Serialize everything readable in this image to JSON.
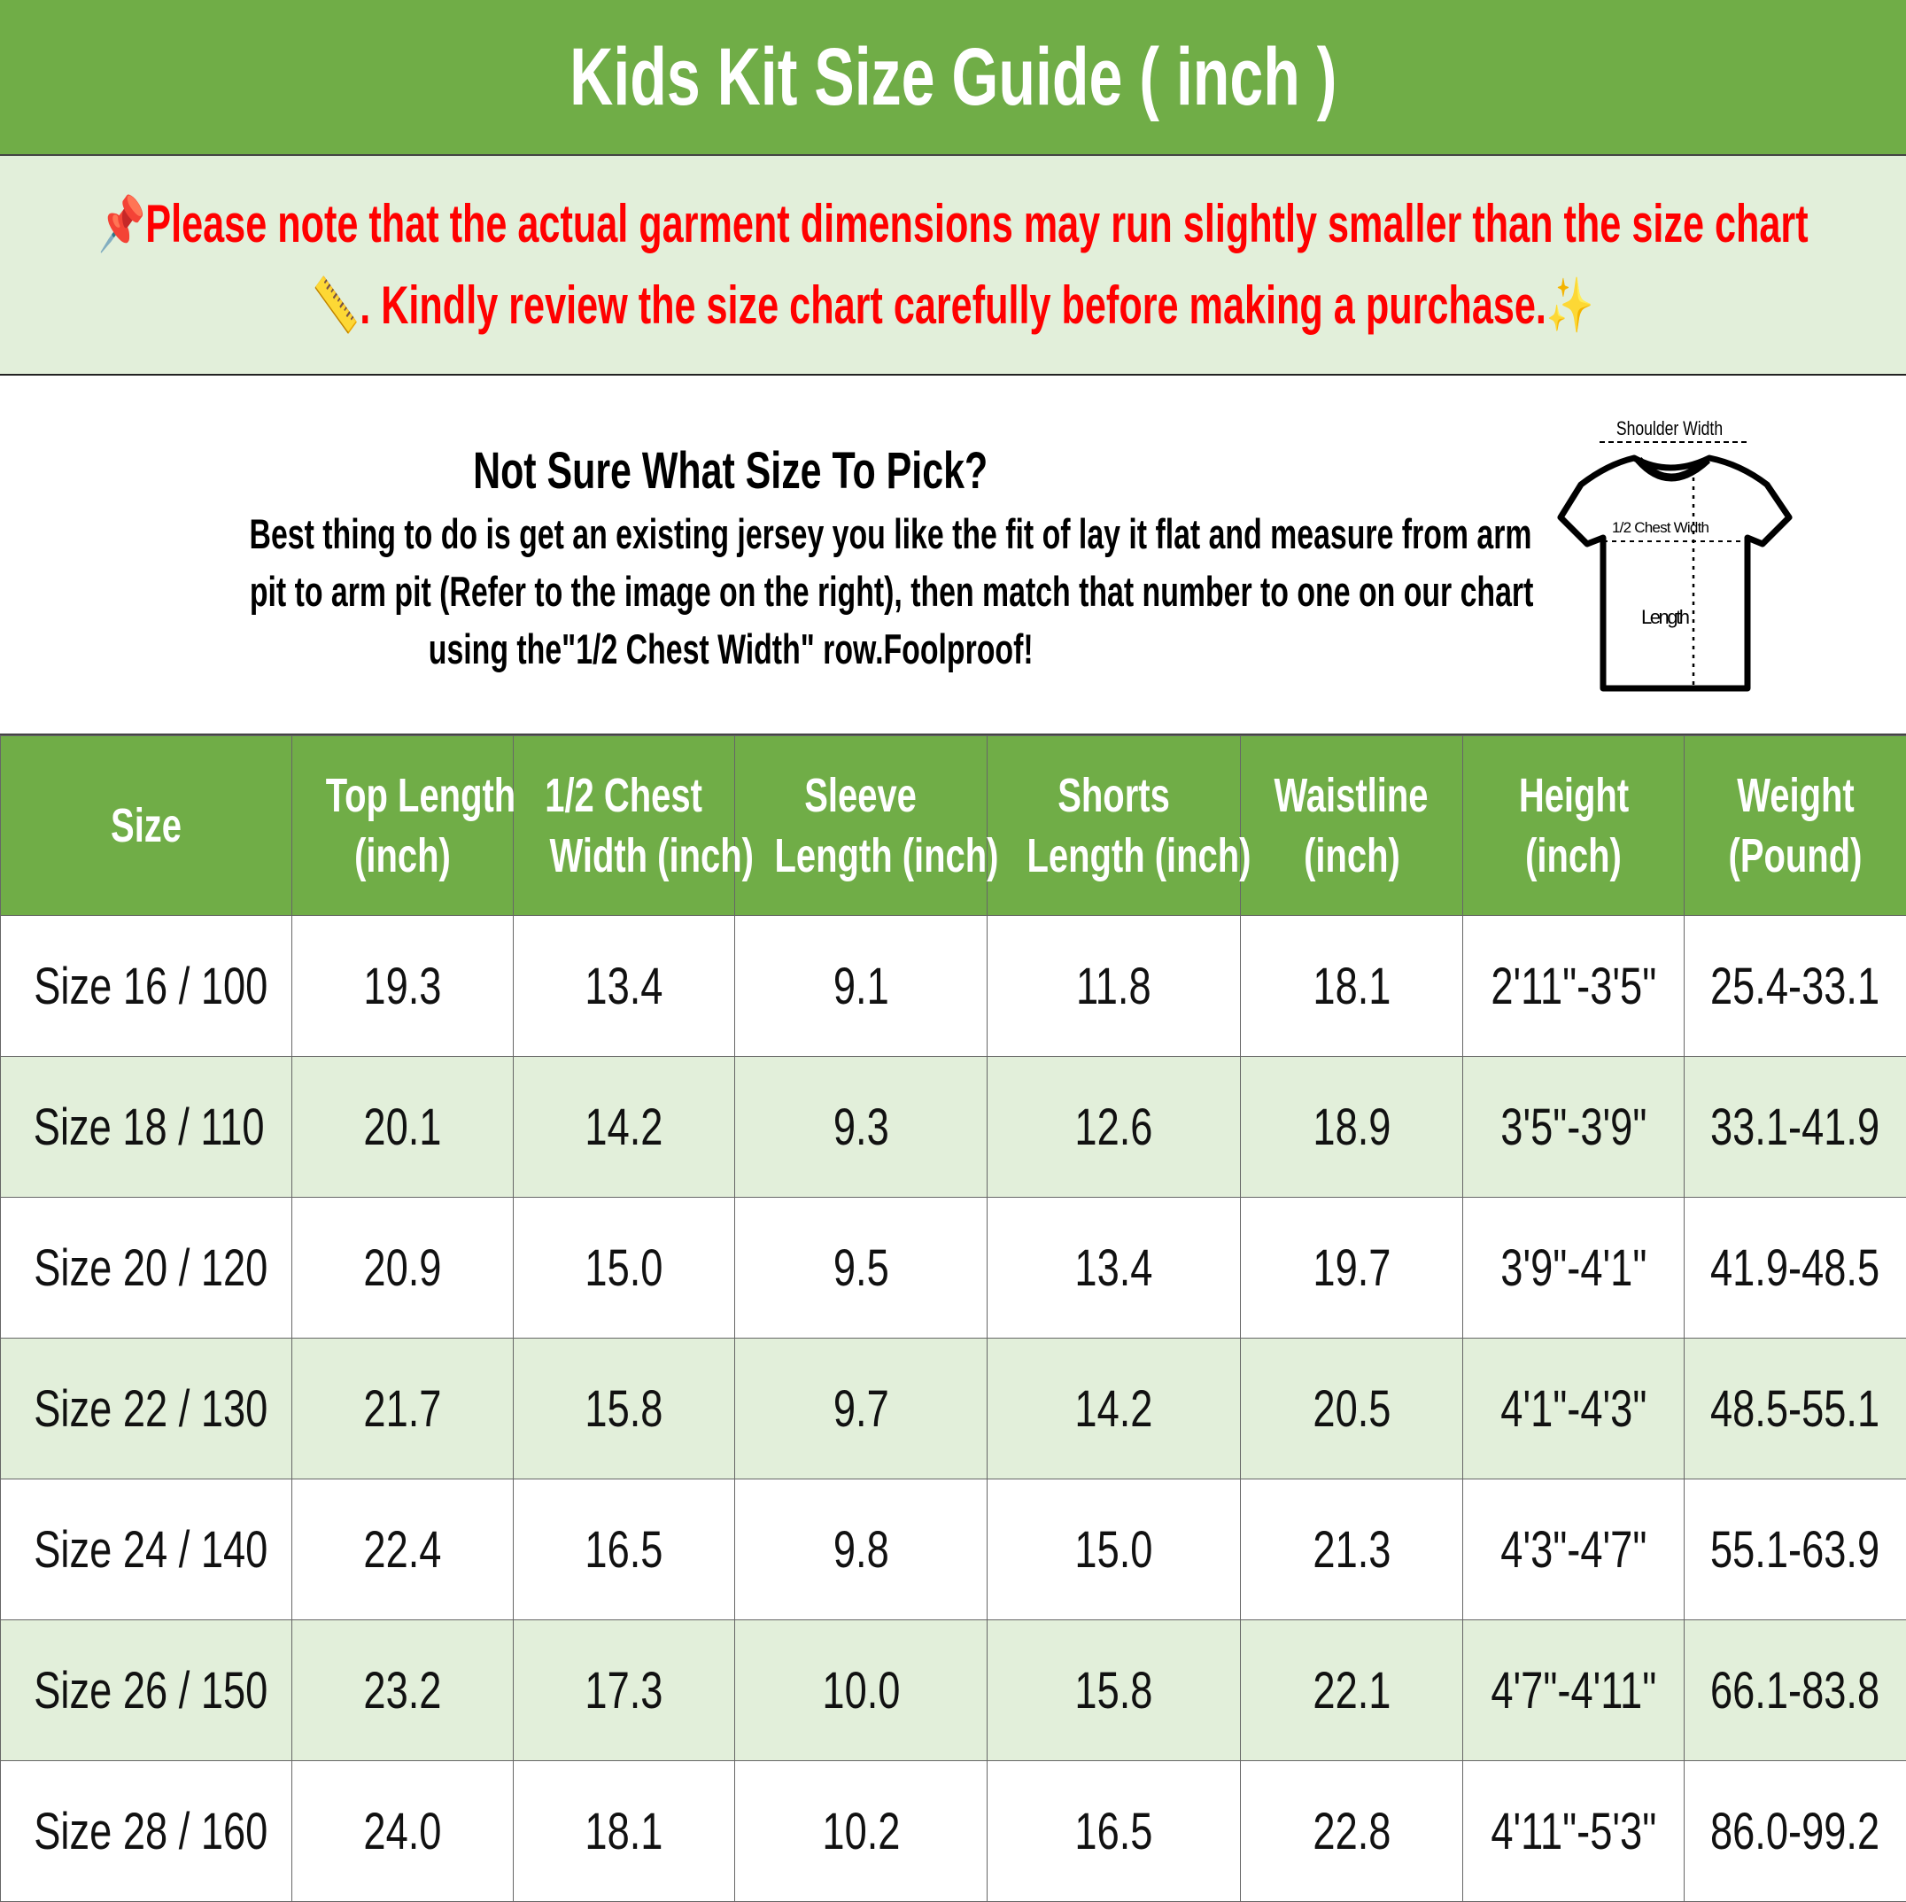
{
  "title": "Kids Kit Size Guide ( inch )",
  "notice": {
    "line1": "Please note that the actual garment dimensions may run slightly smaller than the size chart",
    "line2": ". Kindly review the size chart carefully before making a purchase.",
    "icons": [
      "pushpin-icon",
      "ruler-icon",
      "sparkles-icon"
    ],
    "color": "#ff0000"
  },
  "info": {
    "heading": "Not Sure What Size To Pick?",
    "body_lines": [
      "Best thing to do is get an existing jersey you like the fit of lay it flat and measure from arm",
      "pit to arm pit (Refer to the image on the right), then match that number to one on our chart",
      "using the\"1/2 Chest Width\" row.Foolproof!"
    ],
    "diagram": {
      "shoulder": "Shoulder Width",
      "chest": "1/2 Chest Width",
      "length": "Length"
    }
  },
  "colors": {
    "header": "#70ad47",
    "alt_row": "#e2efda"
  },
  "table": {
    "headers": [
      [
        "Size"
      ],
      [
        "Top Length",
        "(inch)"
      ],
      [
        "1/2 Chest",
        "Width (inch)"
      ],
      [
        "Sleeve",
        "Length (inch)"
      ],
      [
        "Shorts",
        "Length (inch)"
      ],
      [
        "Waistline",
        "(inch)"
      ],
      [
        "Height",
        "(inch)"
      ],
      [
        "Weight",
        "(Pound)"
      ]
    ],
    "rows": [
      [
        "Size 16 / 100",
        "19.3",
        "13.4",
        "9.1",
        "11.8",
        "18.1",
        "2'11\"-3'5\"",
        "25.4-33.1"
      ],
      [
        "Size 18 / 110",
        "20.1",
        "14.2",
        "9.3",
        "12.6",
        "18.9",
        "3'5\"-3'9\"",
        "33.1-41.9"
      ],
      [
        "Size 20 / 120",
        "20.9",
        "15.0",
        "9.5",
        "13.4",
        "19.7",
        "3'9\"-4'1\"",
        "41.9-48.5"
      ],
      [
        "Size 22 / 130",
        "21.7",
        "15.8",
        "9.7",
        "14.2",
        "20.5",
        "4'1\"-4'3\"",
        "48.5-55.1"
      ],
      [
        "Size 24 / 140",
        "22.4",
        "16.5",
        "9.8",
        "15.0",
        "21.3",
        "4'3\"-4'7\"",
        "55.1-63.9"
      ],
      [
        "Size 26 / 150",
        "23.2",
        "17.3",
        "10.0",
        "15.8",
        "22.1",
        "4'7\"-4'11\"",
        "66.1-83.8"
      ],
      [
        "Size 28 / 160",
        "24.0",
        "18.1",
        "10.2",
        "16.5",
        "22.8",
        "4'11\"-5'3\"",
        "86.0-99.2"
      ]
    ]
  }
}
